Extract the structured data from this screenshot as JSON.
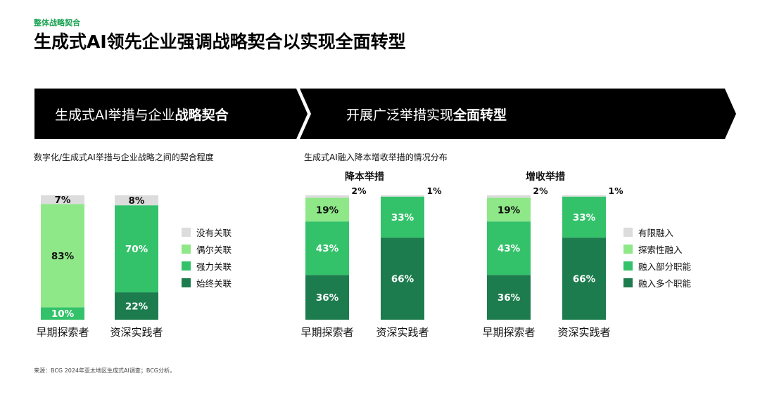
{
  "header": {
    "eyebrow": "整体战略契合",
    "title": "生成式AI领先企业强调战略契合以实现全面转型"
  },
  "banners": {
    "left": {
      "text": "生成式AI举措与企业",
      "bold": "战略契合"
    },
    "right": {
      "text": "开展广泛举措实现",
      "bold": "全面转型"
    }
  },
  "colors": {
    "banner": "#000000",
    "gray": "#dcdcdc",
    "light_green": "#8ee888",
    "mid_green": "#33c26a",
    "dark_green": "#1d7c4e"
  },
  "left_chart": {
    "caption": "数字化/生成式AI举措与企业战略之间的契合程度",
    "legend": [
      "没有关联",
      "偶尔关联",
      "强力关联",
      "始终关联"
    ]
  },
  "right_chart": {
    "caption": "生成式AI融入降本增收举措的情况分布",
    "sub_titles": [
      "降本举措",
      "增收举措"
    ],
    "legend": [
      "有限融入",
      "探索性融入",
      "融入部分职能",
      "融入多个职能"
    ]
  },
  "source": "来源：BCG 2024年亚太地区生成式AI调查；BCG分析。",
  "chart_data": [
    {
      "type": "bar",
      "stacked": true,
      "categories": [
        "早期探索者",
        "资深实践者"
      ],
      "series": [
        {
          "name": "始终关联",
          "values": [
            0,
            22
          ]
        },
        {
          "name": "强力关联",
          "values": [
            10,
            70
          ]
        },
        {
          "name": "偶尔关联",
          "values": [
            83,
            0
          ]
        },
        {
          "name": "没有关联",
          "values": [
            7,
            8
          ]
        }
      ],
      "labels": [
        [
          "",
          "10%",
          "83%",
          "7%"
        ],
        [
          "22%",
          "70%",
          "",
          "8%"
        ]
      ]
    },
    {
      "type": "bar",
      "stacked": true,
      "title": "降本举措",
      "categories": [
        "早期探索者",
        "资深实践者"
      ],
      "series": [
        {
          "name": "融入多个职能",
          "values": [
            36,
            66
          ]
        },
        {
          "name": "融入部分职能",
          "values": [
            43,
            33
          ]
        },
        {
          "name": "探索性融入",
          "values": [
            19,
            0
          ]
        },
        {
          "name": "有限融入",
          "values": [
            2,
            1
          ]
        }
      ],
      "labels": [
        [
          "36%",
          "43%",
          "19%",
          "2%"
        ],
        [
          "66%",
          "33%",
          "",
          "1%"
        ]
      ]
    },
    {
      "type": "bar",
      "stacked": true,
      "title": "增收举措",
      "categories": [
        "早期探索者",
        "资深实践者"
      ],
      "series": [
        {
          "name": "融入多个职能",
          "values": [
            36,
            66
          ]
        },
        {
          "name": "融入部分职能",
          "values": [
            43,
            33
          ]
        },
        {
          "name": "探索性融入",
          "values": [
            19,
            0
          ]
        },
        {
          "name": "有限融入",
          "values": [
            2,
            1
          ]
        }
      ],
      "labels": [
        [
          "36%",
          "43%",
          "19%",
          "2%"
        ],
        [
          "66%",
          "33%",
          "",
          "1%"
        ]
      ]
    }
  ]
}
